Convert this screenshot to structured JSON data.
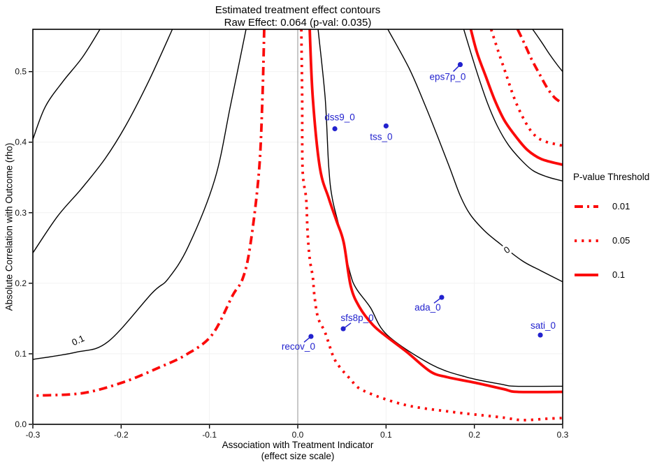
{
  "chart_data": {
    "type": "line",
    "title": "Estimated treatment effect contours",
    "subtitle": "Raw Effect: 0.064 (p-val: 0.035)",
    "raw_effect": 0.064,
    "p_val": 0.035,
    "xlabel_line1": "Association with Treatment Indicator",
    "xlabel_line2": "(effect size scale)",
    "ylabel": "Absolute Correlation with Outcome (rho)",
    "x_range": [
      -0.3,
      0.3
    ],
    "y_range": [
      0,
      0.56
    ],
    "x_ticks": [
      {
        "v": -0.3,
        "label": "-0.3"
      },
      {
        "v": -0.2,
        "label": "-0.2"
      },
      {
        "v": -0.1,
        "label": "-0.1"
      },
      {
        "v": 0.0,
        "label": "0.0"
      },
      {
        "v": 0.1,
        "label": "0.1"
      },
      {
        "v": 0.2,
        "label": "0.2"
      },
      {
        "v": 0.3,
        "label": "0.3"
      }
    ],
    "y_ticks": [
      {
        "v": 0.0,
        "label": "0.0"
      },
      {
        "v": 0.1,
        "label": "0.1"
      },
      {
        "v": 0.2,
        "label": "0.2"
      },
      {
        "v": 0.3,
        "label": "0.3"
      },
      {
        "v": 0.4,
        "label": "0.4"
      },
      {
        "v": 0.5,
        "label": "0.5"
      }
    ],
    "grid": true,
    "zero_line_x": 0.0,
    "colors": {
      "effect_contour": "#000000",
      "pvalue_contour": "#FB0A0A",
      "points": "#2222CE",
      "zero_line": "#ABABAB",
      "grid": "#F2F2F2",
      "border": "#000000"
    },
    "effect_contours": [
      {
        "name": "contour-a",
        "label": null,
        "points": [
          [
            -0.224,
            0.56
          ],
          [
            -0.244,
            0.52
          ],
          [
            -0.266,
            0.486
          ],
          [
            -0.286,
            0.45
          ],
          [
            -0.3,
            0.404
          ]
        ]
      },
      {
        "name": "contour-b",
        "label": null,
        "points": [
          [
            -0.142,
            0.56
          ],
          [
            -0.169,
            0.486
          ],
          [
            -0.195,
            0.423
          ],
          [
            -0.218,
            0.377
          ],
          [
            -0.245,
            0.334
          ],
          [
            -0.272,
            0.295
          ],
          [
            -0.3,
            0.243
          ]
        ]
      },
      {
        "name": "contour-c",
        "label": "0.1",
        "label_at": [
          -0.2486,
          0.1187
        ],
        "label_rotation": -25,
        "points": [
          [
            -0.0586,
            0.56
          ],
          [
            -0.076,
            0.453
          ],
          [
            -0.094,
            0.347
          ],
          [
            -0.124,
            0.252
          ],
          [
            -0.147,
            0.206
          ],
          [
            -0.165,
            0.186
          ],
          [
            -0.215,
            0.117
          ],
          [
            -0.252,
            0.102
          ],
          [
            -0.3,
            0.092
          ]
        ]
      },
      {
        "name": "contour-d",
        "label": null,
        "points": [
          [
            0.023,
            0.56
          ],
          [
            0.031,
            0.463
          ],
          [
            0.035,
            0.367
          ],
          [
            0.039,
            0.321
          ],
          [
            0.048,
            0.275
          ],
          [
            0.059,
            0.216
          ],
          [
            0.066,
            0.193
          ],
          [
            0.082,
            0.166
          ],
          [
            0.101,
            0.127
          ],
          [
            0.151,
            0.085
          ],
          [
            0.191,
            0.067
          ],
          [
            0.23,
            0.057
          ],
          [
            0.247,
            0.054
          ],
          [
            0.3,
            0.054
          ]
        ]
      },
      {
        "name": "contour-e",
        "label": "0",
        "label_at": [
          0.237,
          0.247
        ],
        "label_rotation": -35,
        "points": [
          [
            0.102,
            0.56
          ],
          [
            0.126,
            0.505
          ],
          [
            0.144,
            0.453
          ],
          [
            0.159,
            0.406
          ],
          [
            0.172,
            0.364
          ],
          [
            0.184,
            0.324
          ],
          [
            0.195,
            0.298
          ],
          [
            0.211,
            0.275
          ],
          [
            0.227,
            0.258
          ],
          [
            0.254,
            0.232
          ],
          [
            0.275,
            0.218
          ],
          [
            0.3,
            0.202
          ]
        ]
      },
      {
        "name": "contour-f",
        "label": null,
        "points": [
          [
            0.188,
            0.56
          ],
          [
            0.196,
            0.527
          ],
          [
            0.205,
            0.491
          ],
          [
            0.215,
            0.455
          ],
          [
            0.226,
            0.423
          ],
          [
            0.238,
            0.397
          ],
          [
            0.252,
            0.376
          ],
          [
            0.266,
            0.36
          ],
          [
            0.282,
            0.351
          ],
          [
            0.3,
            0.345
          ]
        ]
      },
      {
        "name": "contour-g",
        "label": null,
        "points": [
          [
            0.266,
            0.56
          ],
          [
            0.276,
            0.542
          ],
          [
            0.285,
            0.525
          ],
          [
            0.293,
            0.511
          ],
          [
            0.3,
            0.5
          ]
        ]
      }
    ],
    "pvalue_contours": [
      {
        "name": "p01-left",
        "threshold": "0.01",
        "style": "dashdot",
        "points": [
          [
            -0.038,
            0.56
          ],
          [
            -0.04,
            0.463
          ],
          [
            -0.044,
            0.357
          ],
          [
            -0.054,
            0.252
          ],
          [
            -0.0625,
            0.206
          ],
          [
            -0.0736,
            0.183
          ],
          [
            -0.097,
            0.127
          ],
          [
            -0.126,
            0.099
          ],
          [
            -0.158,
            0.08
          ],
          [
            -0.197,
            0.06
          ],
          [
            -0.242,
            0.0445
          ],
          [
            -0.29,
            0.041
          ],
          [
            -0.3,
            0.041
          ]
        ]
      },
      {
        "name": "p05-center",
        "threshold": "0.05",
        "style": "dotted",
        "points": [
          [
            0.004,
            0.56
          ],
          [
            0.005,
            0.463
          ],
          [
            0.0055,
            0.361
          ],
          [
            0.0095,
            0.32
          ],
          [
            0.011,
            0.275
          ],
          [
            0.0135,
            0.235
          ],
          [
            0.017,
            0.209
          ],
          [
            0.019,
            0.181
          ],
          [
            0.023,
            0.151
          ],
          [
            0.031,
            0.13
          ],
          [
            0.04,
            0.097
          ],
          [
            0.047,
            0.082
          ],
          [
            0.059,
            0.065
          ],
          [
            0.074,
            0.048
          ],
          [
            0.12,
            0.028
          ],
          [
            0.172,
            0.018
          ],
          [
            0.23,
            0.01
          ],
          [
            0.254,
            0.006
          ],
          [
            0.283,
            0.008
          ],
          [
            0.3,
            0.009
          ]
        ]
      },
      {
        "name": "p10-center",
        "threshold": "0.1",
        "style": "solid",
        "points": [
          [
            0.0135,
            0.56
          ],
          [
            0.017,
            0.463
          ],
          [
            0.025,
            0.364
          ],
          [
            0.035,
            0.321
          ],
          [
            0.044,
            0.288
          ],
          [
            0.052,
            0.258
          ],
          [
            0.06,
            0.196
          ],
          [
            0.07,
            0.166
          ],
          [
            0.085,
            0.141
          ],
          [
            0.101,
            0.124
          ],
          [
            0.124,
            0.102
          ],
          [
            0.15,
            0.075
          ],
          [
            0.169,
            0.067
          ],
          [
            0.201,
            0.059
          ],
          [
            0.233,
            0.05
          ],
          [
            0.249,
            0.046
          ],
          [
            0.3,
            0.046
          ]
        ]
      },
      {
        "name": "p10-topright",
        "threshold": "0.1",
        "style": "solid",
        "points": [
          [
            0.196,
            0.56
          ],
          [
            0.203,
            0.527
          ],
          [
            0.213,
            0.493
          ],
          [
            0.223,
            0.46
          ],
          [
            0.234,
            0.431
          ],
          [
            0.247,
            0.408
          ],
          [
            0.26,
            0.389
          ],
          [
            0.276,
            0.376
          ],
          [
            0.3,
            0.368
          ]
        ]
      },
      {
        "name": "p05-topright",
        "threshold": "0.05",
        "style": "dotted",
        "points": [
          [
            0.219,
            0.56
          ],
          [
            0.227,
            0.529
          ],
          [
            0.236,
            0.496
          ],
          [
            0.245,
            0.463
          ],
          [
            0.255,
            0.435
          ],
          [
            0.266,
            0.413
          ],
          [
            0.278,
            0.402
          ],
          [
            0.3,
            0.395
          ]
        ]
      },
      {
        "name": "p01-topright",
        "threshold": "0.01",
        "style": "dashdot",
        "points": [
          [
            0.249,
            0.56
          ],
          [
            0.257,
            0.539
          ],
          [
            0.265,
            0.517
          ],
          [
            0.274,
            0.496
          ],
          [
            0.283,
            0.476
          ],
          [
            0.291,
            0.463
          ],
          [
            0.3,
            0.455
          ]
        ]
      }
    ],
    "legend": {
      "title": "P-value Threshold",
      "items": [
        {
          "label": "0.01",
          "style": "dashdot"
        },
        {
          "label": "0.05",
          "style": "dotted"
        },
        {
          "label": "0.1",
          "style": "solid"
        }
      ]
    },
    "observed_covariates": [
      {
        "name": "eps7p_0",
        "x": 0.184,
        "y": 0.51,
        "label_offset": [
          -18,
          18
        ],
        "leader": true
      },
      {
        "name": "dss9_0",
        "x": 0.042,
        "y": 0.419,
        "label_offset": [
          7,
          -16
        ],
        "leader": false
      },
      {
        "name": "tss_0",
        "x": 0.1,
        "y": 0.423,
        "label_offset": [
          -7,
          16
        ],
        "leader": false
      },
      {
        "name": "ada_0",
        "x": 0.163,
        "y": 0.18,
        "label_offset": [
          -20,
          15
        ],
        "leader": true
      },
      {
        "name": "sfs8p_0",
        "x": 0.0515,
        "y": 0.1355,
        "label_offset": [
          20,
          -15
        ],
        "leader": true
      },
      {
        "name": "recov_0",
        "x": 0.015,
        "y": 0.1246,
        "label_offset": [
          -18,
          15
        ],
        "leader": true
      },
      {
        "name": "sati_0",
        "x": 0.2747,
        "y": 0.1266,
        "label_offset": [
          4,
          -13
        ],
        "leader": false
      }
    ]
  }
}
